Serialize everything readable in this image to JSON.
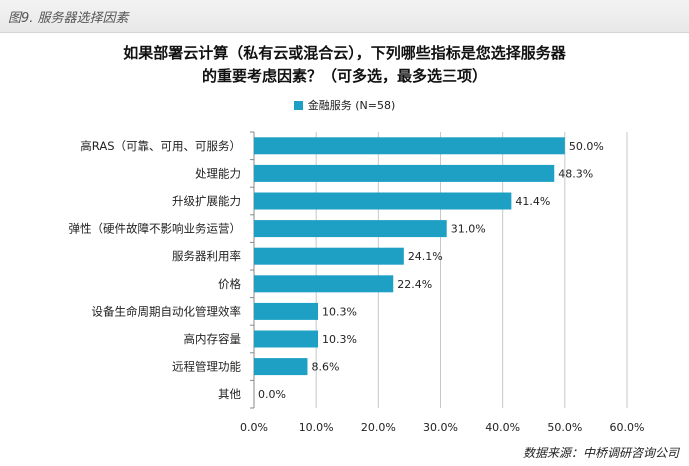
{
  "caption": "图9. 服务器选择因素",
  "source": "数据来源：中桥调研咨询公司",
  "chart_data": {
    "type": "bar",
    "orientation": "horizontal",
    "title_lines": [
      "如果部署云计算（私有云或混合云），下列哪些指标是您选择服务器",
      "的重要考虑因素？（可多选，最多选三项）"
    ],
    "legend_position": "top",
    "categories": [
      "高RAS（可靠、可用、可服务）",
      "处理能力",
      "升级扩展能力",
      "弹性（硬件故障不影响业务运营）",
      "服务器利用率",
      "价格",
      "设备生命周期自动化管理效率",
      "高内存容量",
      "远程管理功能",
      "其他"
    ],
    "series": [
      {
        "name": "金融服务 (N=58)",
        "color": "#1ea0c4",
        "values": [
          50.0,
          48.3,
          41.4,
          31.0,
          24.1,
          22.4,
          10.3,
          10.3,
          8.6,
          0.0
        ],
        "labels": [
          "50.0%",
          "48.3%",
          "41.4%",
          "31.0%",
          "24.1%",
          "22.4%",
          "10.3%",
          "10.3%",
          "8.6%",
          "0.0%"
        ]
      }
    ],
    "xlim": [
      0,
      60
    ],
    "x_ticks": [
      "0.0%",
      "10.0%",
      "20.0%",
      "30.0%",
      "40.0%",
      "50.0%",
      "60.0%"
    ],
    "grid": true
  }
}
